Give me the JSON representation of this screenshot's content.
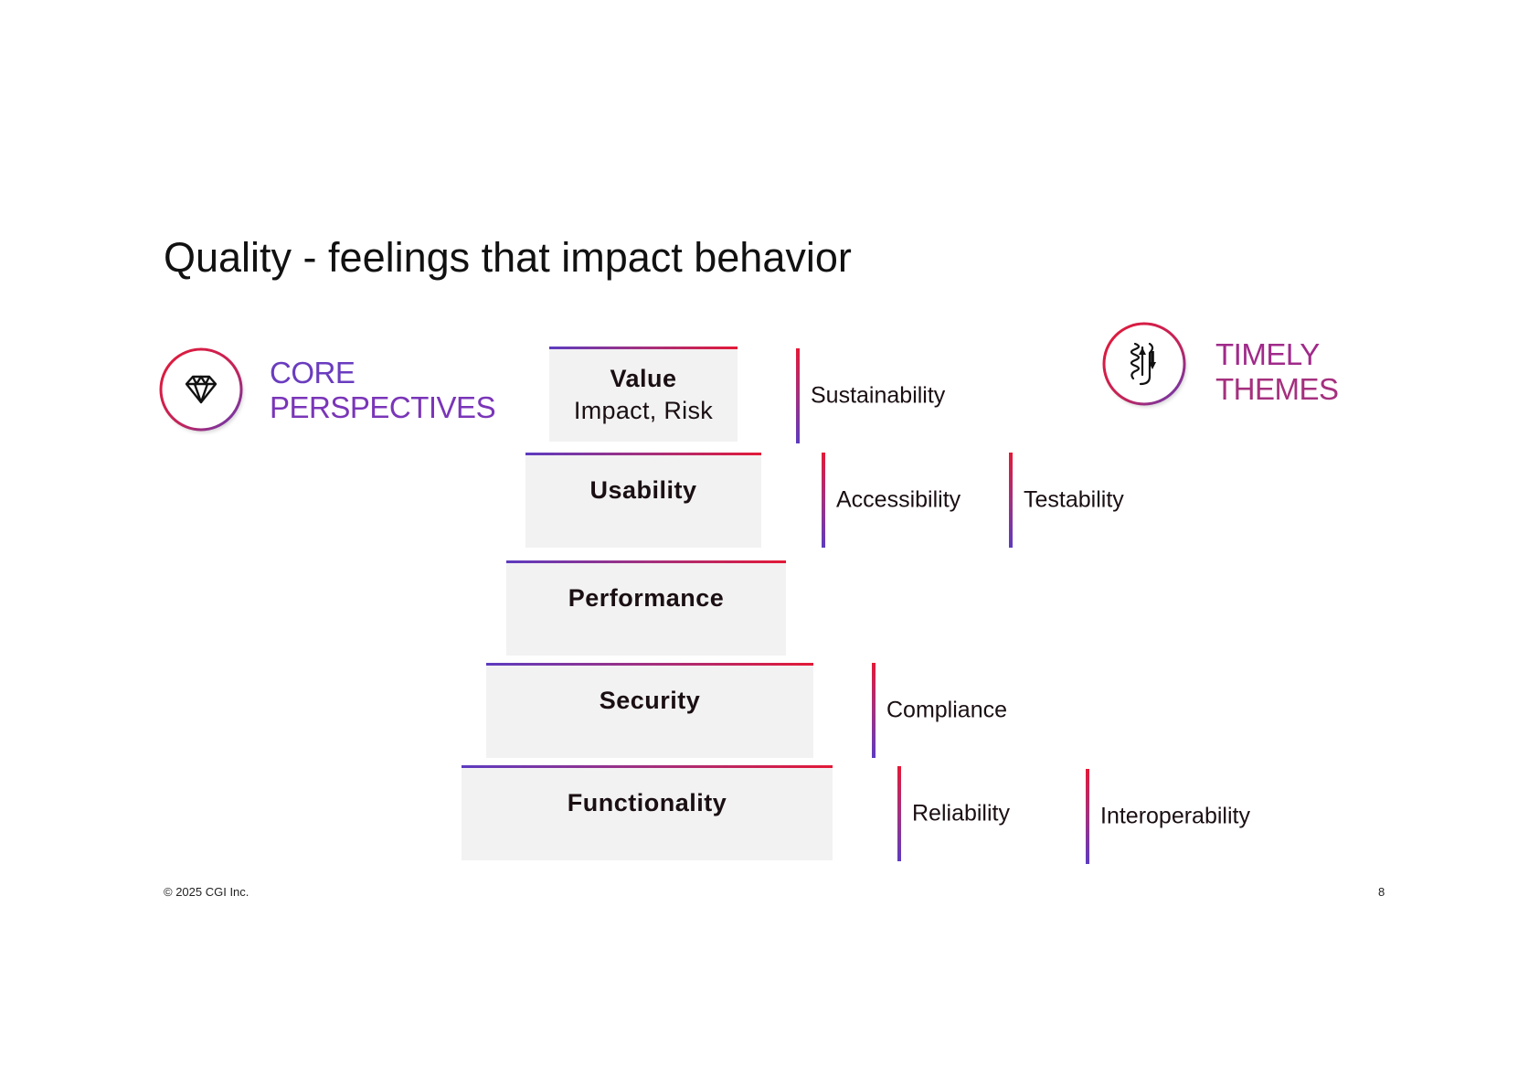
{
  "title": "Quality - feelings that impact behavior",
  "core": {
    "line1": "CORE",
    "line2": "PERSPECTIVES",
    "icon": "diamond-icon"
  },
  "timely": {
    "line1": "TIMELY",
    "line2": "THEMES",
    "icon": "protein-structure-icon"
  },
  "pyramid": [
    {
      "title": "Value",
      "subtitle": "Impact, Risk"
    },
    {
      "title": "Usability",
      "subtitle": ""
    },
    {
      "title": "Performance",
      "subtitle": ""
    },
    {
      "title": "Security",
      "subtitle": ""
    },
    {
      "title": "Functionality",
      "subtitle": ""
    }
  ],
  "themes": {
    "sustainability": "Sustainability",
    "accessibility": "Accessibility",
    "testability": "Testability",
    "compliance": "Compliance",
    "reliability": "Reliability",
    "interoperability": "Interoperability"
  },
  "colors": {
    "gradient_start": "#5d3bbf",
    "gradient_end": "#e31937",
    "step_fill": "#f2f2f2"
  },
  "footer": {
    "copyright": "© 2025 CGI Inc.",
    "page_number": "8"
  }
}
